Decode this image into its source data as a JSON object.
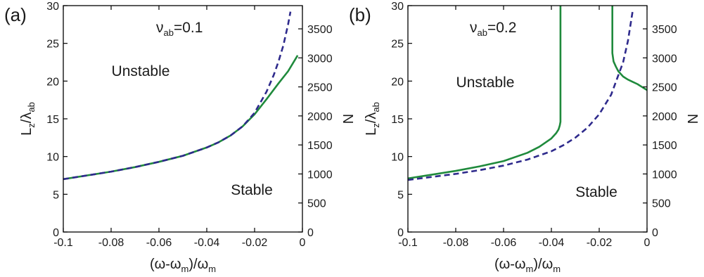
{
  "chart_data": [
    {
      "type": "line",
      "panel_label": "(a)",
      "xlabel": {
        "parts": [
          "(ω-ω",
          "m",
          ")/ω",
          "m"
        ]
      },
      "ylabel": {
        "parts": [
          "L",
          "z",
          "/λ",
          "ab"
        ]
      },
      "y2label": "N",
      "xlim": [
        -0.1,
        0
      ],
      "ylim": [
        0,
        30
      ],
      "y2lim": [
        0,
        3900
      ],
      "xticks": [
        -0.1,
        -0.08,
        -0.06,
        -0.04,
        -0.02,
        0
      ],
      "xtick_labels": [
        "-0.1",
        "-0.08",
        "-0.06",
        "-0.04",
        "-0.02",
        "0"
      ],
      "yticks": [
        0,
        5,
        10,
        15,
        20,
        25,
        30
      ],
      "ytick_labels": [
        "0",
        "5",
        "10",
        "15",
        "20",
        "25",
        "30"
      ],
      "y2ticks": [
        0,
        500,
        1000,
        1500,
        2000,
        2500,
        3000,
        3500
      ],
      "y2tick_labels": [
        "0",
        "500",
        "1000",
        "1500",
        "2000",
        "2500",
        "3000",
        "3500"
      ],
      "annotation": {
        "parts": [
          "ν",
          "ab",
          "=0.1"
        ]
      },
      "regions": [
        "Unstable",
        "Stable"
      ],
      "grid": false,
      "series": [
        {
          "style": "solid",
          "color": "#1f8a3c",
          "x": [
            -0.1,
            -0.09,
            -0.08,
            -0.07,
            -0.06,
            -0.05,
            -0.04,
            -0.035,
            -0.03,
            -0.025,
            -0.02,
            -0.015,
            -0.01,
            -0.006,
            -0.002
          ],
          "y": [
            7.0,
            7.5,
            8.0,
            8.6,
            9.3,
            10.1,
            11.2,
            11.9,
            12.8,
            14.0,
            15.6,
            17.6,
            19.7,
            21.3,
            23.4
          ]
        },
        {
          "style": "dashed",
          "color": "#2e2a8c",
          "x": [
            -0.1,
            -0.09,
            -0.08,
            -0.07,
            -0.06,
            -0.05,
            -0.04,
            -0.035,
            -0.03,
            -0.025,
            -0.02,
            -0.015,
            -0.012,
            -0.01,
            -0.008,
            -0.006,
            -0.005
          ],
          "y": [
            7.0,
            7.5,
            8.0,
            8.6,
            9.3,
            10.1,
            11.2,
            11.9,
            12.8,
            14.0,
            15.8,
            18.6,
            20.8,
            22.6,
            24.7,
            27.5,
            29.2
          ]
        }
      ]
    },
    {
      "type": "line",
      "panel_label": "(b)",
      "xlabel": {
        "parts": [
          "(ω-ω",
          "m",
          ")/ω",
          "m"
        ]
      },
      "ylabel": {
        "parts": [
          "L",
          "z",
          "/λ",
          "ab"
        ]
      },
      "y2label": "N",
      "xlim": [
        -0.1,
        0
      ],
      "ylim": [
        0,
        30
      ],
      "y2lim": [
        0,
        3900
      ],
      "xticks": [
        -0.1,
        -0.08,
        -0.06,
        -0.04,
        -0.02,
        0
      ],
      "xtick_labels": [
        "-0.1",
        "-0.08",
        "-0.06",
        "-0.04",
        "-0.02",
        "0"
      ],
      "yticks": [
        0,
        5,
        10,
        15,
        20,
        25,
        30
      ],
      "ytick_labels": [
        "0",
        "5",
        "10",
        "15",
        "20",
        "25",
        "30"
      ],
      "y2ticks": [
        0,
        500,
        1000,
        1500,
        2000,
        2500,
        3000,
        3500
      ],
      "y2tick_labels": [
        "0",
        "500",
        "1000",
        "1500",
        "2000",
        "2500",
        "3000",
        "3500"
      ],
      "annotation": {
        "parts": [
          "ν",
          "ab",
          "=0.2"
        ]
      },
      "regions": [
        "Unstable",
        "Stable"
      ],
      "grid": false,
      "series": [
        {
          "style": "solid",
          "color": "#1f8a3c",
          "x": [
            -0.1,
            -0.09,
            -0.08,
            -0.07,
            -0.06,
            -0.05,
            -0.045,
            -0.04,
            -0.038,
            -0.037,
            -0.0365,
            -0.0362,
            -0.0362
          ],
          "y": [
            7.1,
            7.6,
            8.1,
            8.7,
            9.4,
            10.5,
            11.3,
            12.4,
            13.1,
            13.6,
            14.1,
            14.6,
            30
          ]
        },
        {
          "style": "solid",
          "color": "#1f8a3c",
          "x": [
            -0.0145,
            -0.0145,
            -0.014,
            -0.013,
            -0.012,
            -0.01,
            -0.008,
            -0.006,
            -0.004,
            -0.002,
            0
          ],
          "y": [
            30,
            23.7,
            22.6,
            21.9,
            21.3,
            20.6,
            20.2,
            19.9,
            19.6,
            19.2,
            18.8
          ]
        },
        {
          "style": "dashed",
          "color": "#2e2a8c",
          "x": [
            -0.1,
            -0.09,
            -0.08,
            -0.07,
            -0.06,
            -0.05,
            -0.04,
            -0.035,
            -0.03,
            -0.025,
            -0.02,
            -0.015,
            -0.01,
            -0.008,
            -0.006
          ],
          "y": [
            6.9,
            7.3,
            7.7,
            8.2,
            8.8,
            9.6,
            10.7,
            11.5,
            12.5,
            13.8,
            15.6,
            18.2,
            22.5,
            25.3,
            29.3
          ]
        }
      ]
    }
  ]
}
